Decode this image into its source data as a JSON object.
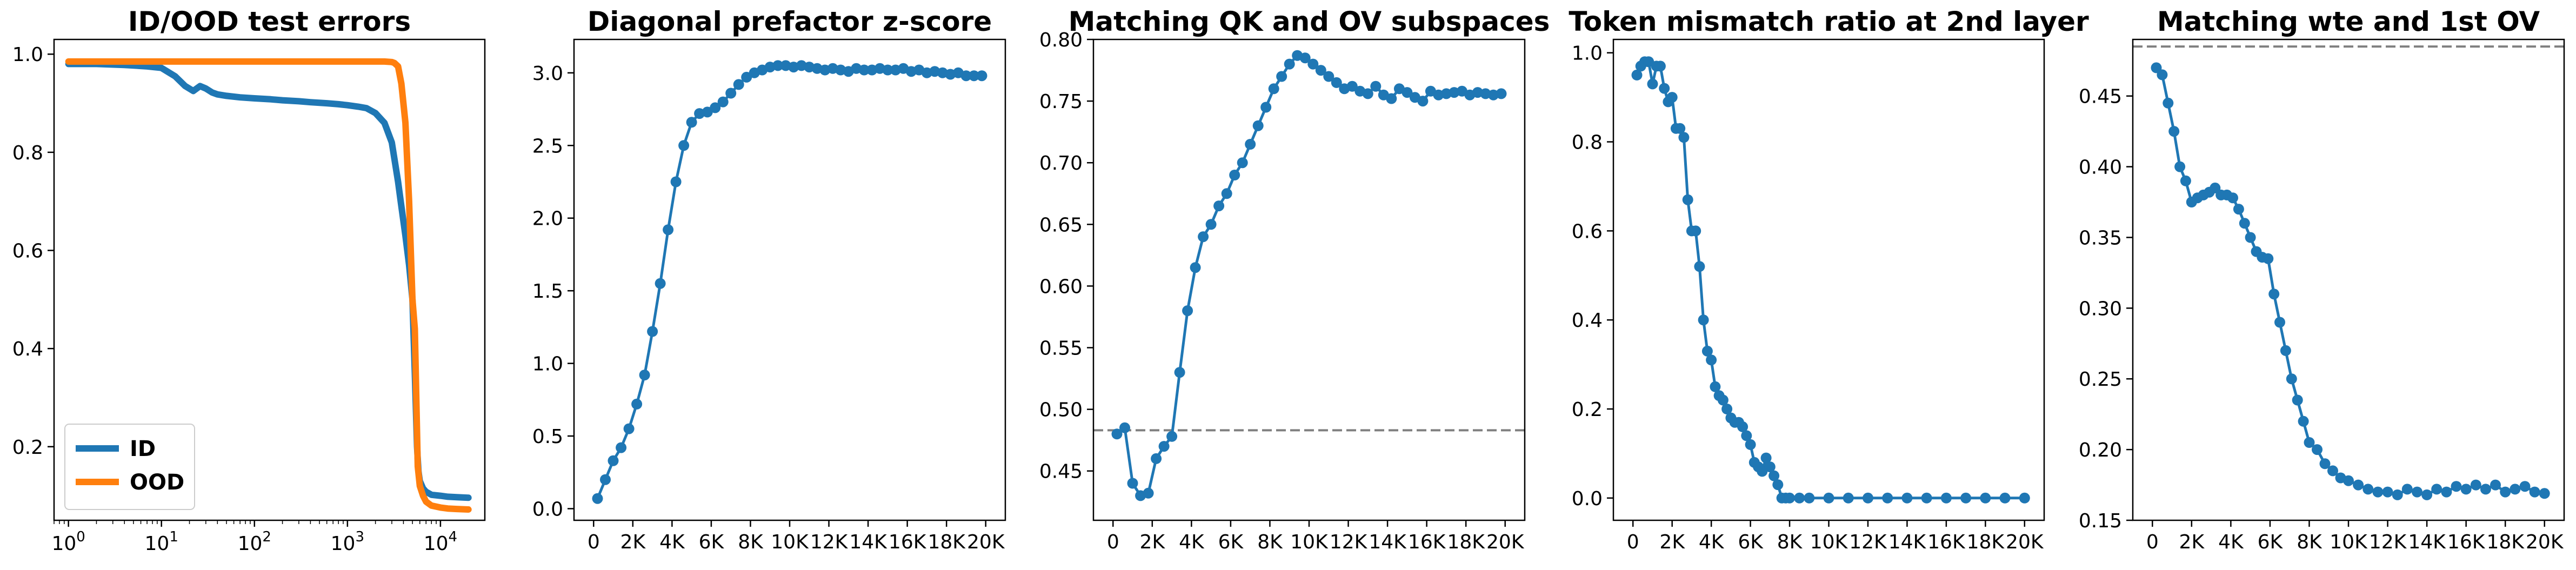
{
  "chart_data": [
    {
      "type": "line",
      "title": "ID/OOD test errors",
      "xlabel": "",
      "ylabel": "",
      "xscale": "log",
      "xlim": [
        0.7,
        30000
      ],
      "ylim": [
        0.05,
        1.03
      ],
      "yticks": [
        0.2,
        0.4,
        0.6,
        0.8,
        1.0
      ],
      "ytick_labels": [
        "0.2",
        "0.4",
        "0.6",
        "0.8",
        "1.0"
      ],
      "xtick_labels": [
        {
          "base": "10",
          "exp": "0",
          "value": 1
        },
        {
          "base": "10",
          "exp": "1",
          "value": 10
        },
        {
          "base": "10",
          "exp": "2",
          "value": 100
        },
        {
          "base": "10",
          "exp": "3",
          "value": 1000
        },
        {
          "base": "10",
          "exp": "4",
          "value": 10000
        }
      ],
      "legend": {
        "placement": "lower-left"
      },
      "series": [
        {
          "name": "ID",
          "color": "#1f77b4",
          "x": [
            1,
            2,
            4,
            7,
            10,
            14,
            18,
            22,
            26,
            30,
            35,
            40,
            50,
            70,
            100,
            150,
            200,
            300,
            400,
            600,
            800,
            1000,
            1300,
            1600,
            2000,
            2500,
            3000,
            3500,
            3800,
            4200,
            4600,
            5000,
            5300,
            5600,
            5800,
            6000,
            6500,
            7000,
            8000,
            10000,
            12000,
            15000,
            20000
          ],
          "values": [
            0.98,
            0.98,
            0.978,
            0.975,
            0.972,
            0.955,
            0.935,
            0.925,
            0.935,
            0.93,
            0.922,
            0.918,
            0.915,
            0.912,
            0.91,
            0.908,
            0.906,
            0.904,
            0.902,
            0.9,
            0.898,
            0.896,
            0.893,
            0.89,
            0.88,
            0.86,
            0.82,
            0.74,
            0.69,
            0.63,
            0.57,
            0.5,
            0.35,
            0.2,
            0.15,
            0.13,
            0.115,
            0.108,
            0.102,
            0.1,
            0.098,
            0.097,
            0.096
          ]
        },
        {
          "name": "OOD",
          "color": "#ff7f0e",
          "x": [
            1,
            10,
            100,
            500,
            1000,
            2000,
            2500,
            3000,
            3200,
            3500,
            3800,
            4200,
            4600,
            5000,
            5300,
            5500,
            5700,
            6000,
            6500,
            7000,
            8000,
            10000,
            12000,
            15000,
            20000
          ],
          "values": [
            0.985,
            0.985,
            0.985,
            0.985,
            0.985,
            0.985,
            0.985,
            0.984,
            0.982,
            0.975,
            0.94,
            0.86,
            0.7,
            0.5,
            0.44,
            0.3,
            0.16,
            0.12,
            0.1,
            0.088,
            0.08,
            0.076,
            0.074,
            0.073,
            0.072
          ]
        }
      ]
    },
    {
      "type": "line",
      "title": "Diagonal prefactor z-score",
      "xlabel": "",
      "ylabel": "",
      "markers": true,
      "xlim": [
        -1000,
        21000
      ],
      "ylim": [
        -0.08,
        3.23
      ],
      "yticks": [
        0,
        0.5,
        1.0,
        1.5,
        2.0,
        2.5,
        3.0
      ],
      "ytick_labels": [
        "0.0",
        "0.5",
        "1.0",
        "1.5",
        "2.0",
        "2.5",
        "3.0"
      ],
      "xticks": [
        0,
        2000,
        4000,
        6000,
        8000,
        10000,
        12000,
        14000,
        16000,
        18000,
        20000
      ],
      "xtick_labels": [
        "0",
        "2K",
        "4K",
        "6K",
        "8K",
        "10K",
        "12K",
        "14K",
        "16K",
        "18K",
        "20K"
      ],
      "series": [
        {
          "name": "",
          "color": "#1f77b4",
          "x": [
            200,
            600,
            1000,
            1400,
            1800,
            2200,
            2600,
            3000,
            3400,
            3800,
            4200,
            4600,
            5000,
            5400,
            5800,
            6200,
            6600,
            7000,
            7400,
            7800,
            8200,
            8600,
            9000,
            9400,
            9800,
            10200,
            10600,
            11000,
            11400,
            11800,
            12200,
            12600,
            13000,
            13400,
            13800,
            14200,
            14600,
            15000,
            15400,
            15800,
            16200,
            16600,
            17000,
            17400,
            17800,
            18200,
            18600,
            19000,
            19400,
            19800
          ],
          "values": [
            0.07,
            0.2,
            0.33,
            0.42,
            0.55,
            0.72,
            0.92,
            1.22,
            1.55,
            1.92,
            2.25,
            2.5,
            2.66,
            2.72,
            2.73,
            2.76,
            2.8,
            2.86,
            2.92,
            2.97,
            3.0,
            3.02,
            3.04,
            3.05,
            3.05,
            3.04,
            3.05,
            3.04,
            3.03,
            3.02,
            3.03,
            3.02,
            3.01,
            3.03,
            3.02,
            3.02,
            3.03,
            3.02,
            3.02,
            3.03,
            3.01,
            3.02,
            3.0,
            3.01,
            3.0,
            2.99,
            3.0,
            2.98,
            2.98,
            2.98
          ]
        }
      ]
    },
    {
      "type": "line",
      "title": "Matching QK and OV subspaces",
      "xlabel": "",
      "ylabel": "",
      "markers": true,
      "xlim": [
        -1000,
        21000
      ],
      "ylim": [
        0.41,
        0.8
      ],
      "yticks": [
        0.45,
        0.5,
        0.55,
        0.6,
        0.65,
        0.7,
        0.75,
        0.8
      ],
      "ytick_labels": [
        "0.45",
        "0.50",
        "0.55",
        "0.60",
        "0.65",
        "0.70",
        "0.75",
        "0.80"
      ],
      "xticks": [
        0,
        2000,
        4000,
        6000,
        8000,
        10000,
        12000,
        14000,
        16000,
        18000,
        20000
      ],
      "xtick_labels": [
        "0",
        "2K",
        "4K",
        "6K",
        "8K",
        "10K",
        "12K",
        "14K",
        "16K",
        "18K",
        "20K"
      ],
      "reference_line": {
        "y": 0.483,
        "style": "dashed",
        "color": "#7f7f7f"
      },
      "series": [
        {
          "name": "",
          "color": "#1f77b4",
          "x": [
            200,
            600,
            1000,
            1400,
            1800,
            2200,
            2600,
            3000,
            3400,
            3800,
            4200,
            4600,
            5000,
            5400,
            5800,
            6200,
            6600,
            7000,
            7400,
            7800,
            8200,
            8600,
            9000,
            9400,
            9800,
            10200,
            10600,
            11000,
            11400,
            11800,
            12200,
            12600,
            13000,
            13400,
            13800,
            14200,
            14600,
            15000,
            15400,
            15800,
            16200,
            16600,
            17000,
            17400,
            17800,
            18200,
            18600,
            19000,
            19400,
            19800
          ],
          "values": [
            0.48,
            0.485,
            0.44,
            0.43,
            0.432,
            0.46,
            0.47,
            0.478,
            0.53,
            0.58,
            0.615,
            0.64,
            0.65,
            0.665,
            0.675,
            0.69,
            0.7,
            0.715,
            0.73,
            0.745,
            0.76,
            0.77,
            0.78,
            0.787,
            0.785,
            0.78,
            0.775,
            0.77,
            0.765,
            0.76,
            0.762,
            0.758,
            0.756,
            0.762,
            0.755,
            0.752,
            0.76,
            0.757,
            0.753,
            0.75,
            0.758,
            0.755,
            0.756,
            0.757,
            0.758,
            0.755,
            0.757,
            0.756,
            0.755,
            0.756
          ]
        }
      ]
    },
    {
      "type": "line",
      "title": "Token mismatch ratio at 2nd layer",
      "xlabel": "",
      "ylabel": "",
      "markers": true,
      "xlim": [
        -1000,
        21000
      ],
      "ylim": [
        -0.05,
        1.03
      ],
      "yticks": [
        0,
        0.2,
        0.4,
        0.6,
        0.8,
        1.0
      ],
      "ytick_labels": [
        "0.0",
        "0.2",
        "0.4",
        "0.6",
        "0.8",
        "1.0"
      ],
      "xticks": [
        0,
        2000,
        4000,
        6000,
        8000,
        10000,
        12000,
        14000,
        16000,
        18000,
        20000
      ],
      "xtick_labels": [
        "0",
        "2K",
        "4K",
        "6K",
        "8K",
        "10K",
        "12K",
        "14K",
        "16K",
        "18K",
        "20K"
      ],
      "series": [
        {
          "name": "",
          "color": "#1f77b4",
          "x": [
            200,
            400,
            600,
            800,
            1000,
            1200,
            1400,
            1600,
            1800,
            2000,
            2200,
            2400,
            2600,
            2800,
            3000,
            3200,
            3400,
            3600,
            3800,
            4000,
            4200,
            4400,
            4600,
            4800,
            5000,
            5200,
            5400,
            5600,
            5800,
            6000,
            6200,
            6400,
            6600,
            6800,
            7000,
            7200,
            7400,
            7600,
            7800,
            8000,
            8500,
            9000,
            10000,
            11000,
            12000,
            13000,
            14000,
            15000,
            16000,
            17000,
            18000,
            19000,
            20000
          ],
          "values": [
            0.95,
            0.97,
            0.98,
            0.98,
            0.93,
            0.97,
            0.97,
            0.92,
            0.89,
            0.9,
            0.83,
            0.83,
            0.81,
            0.67,
            0.6,
            0.6,
            0.52,
            0.4,
            0.33,
            0.31,
            0.25,
            0.23,
            0.22,
            0.2,
            0.18,
            0.17,
            0.17,
            0.16,
            0.14,
            0.12,
            0.08,
            0.07,
            0.06,
            0.09,
            0.07,
            0.05,
            0.03,
            0.0,
            0.0,
            0.0,
            0.0,
            0.0,
            0.0,
            0.0,
            0.0,
            0.0,
            0.0,
            0.0,
            0.0,
            0.0,
            0.0,
            0.0,
            0.0
          ]
        }
      ]
    },
    {
      "type": "line",
      "title": "Matching wte and 1st OV",
      "xlabel": "",
      "ylabel": "",
      "markers": true,
      "xlim": [
        -1000,
        21000
      ],
      "ylim": [
        0.15,
        0.49
      ],
      "yticks": [
        0.15,
        0.2,
        0.25,
        0.3,
        0.35,
        0.4,
        0.45
      ],
      "ytick_labels": [
        "0.15",
        "0.20",
        "0.25",
        "0.30",
        "0.35",
        "0.40",
        "0.45"
      ],
      "xticks": [
        0,
        2000,
        4000,
        6000,
        8000,
        10000,
        12000,
        14000,
        16000,
        18000,
        20000
      ],
      "xtick_labels": [
        "0",
        "2K",
        "4K",
        "6K",
        "8K",
        "10K",
        "12K",
        "14K",
        "16K",
        "18K",
        "20K"
      ],
      "reference_line": {
        "y": 0.485,
        "style": "dashed",
        "color": "#7f7f7f"
      },
      "series": [
        {
          "name": "",
          "color": "#1f77b4",
          "x": [
            200,
            500,
            800,
            1100,
            1400,
            1700,
            2000,
            2300,
            2600,
            2900,
            3200,
            3500,
            3800,
            4100,
            4400,
            4700,
            5000,
            5300,
            5600,
            5900,
            6200,
            6500,
            6800,
            7100,
            7400,
            7700,
            8000,
            8400,
            8800,
            9200,
            9600,
            10000,
            10500,
            11000,
            11500,
            12000,
            12500,
            13000,
            13500,
            14000,
            14500,
            15000,
            15500,
            16000,
            16500,
            17000,
            17500,
            18000,
            18500,
            19000,
            19500,
            20000
          ],
          "values": [
            0.47,
            0.465,
            0.445,
            0.425,
            0.4,
            0.39,
            0.375,
            0.378,
            0.38,
            0.382,
            0.385,
            0.38,
            0.38,
            0.378,
            0.37,
            0.36,
            0.35,
            0.34,
            0.336,
            0.335,
            0.31,
            0.29,
            0.27,
            0.25,
            0.235,
            0.22,
            0.205,
            0.2,
            0.19,
            0.185,
            0.18,
            0.178,
            0.175,
            0.172,
            0.17,
            0.17,
            0.168,
            0.172,
            0.17,
            0.168,
            0.172,
            0.17,
            0.174,
            0.172,
            0.175,
            0.172,
            0.175,
            0.17,
            0.172,
            0.174,
            0.17,
            0.169
          ]
        }
      ]
    }
  ]
}
